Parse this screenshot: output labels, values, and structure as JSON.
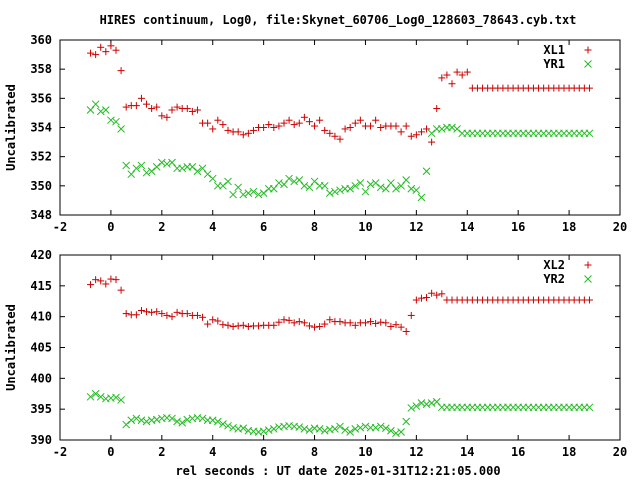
{
  "title": "HIRES continuum, Log0, file:Skynet_60706_Log0_128603_78643.cyb.txt",
  "xlabel": "rel seconds : UT date 2025-01-31T12:21:05.000",
  "colors": {
    "series_a": "#cc0000",
    "series_b": "#22bb22",
    "axes": "#000000"
  },
  "chart_data": [
    {
      "type": "scatter",
      "ylabel": "Uncalibrated",
      "xlim": [
        -2,
        20
      ],
      "ylim": [
        348,
        360
      ],
      "xticks": [
        -2,
        0,
        2,
        4,
        6,
        8,
        10,
        12,
        14,
        16,
        18,
        20
      ],
      "yticks": [
        348,
        350,
        352,
        354,
        356,
        358,
        360
      ],
      "legend": "top-right",
      "x": [
        -0.8,
        -0.6,
        -0.4,
        -0.2,
        0.0,
        0.2,
        0.4,
        0.6,
        0.8,
        1.0,
        1.2,
        1.4,
        1.6,
        1.8,
        2.0,
        2.2,
        2.4,
        2.6,
        2.8,
        3.0,
        3.2,
        3.4,
        3.6,
        3.8,
        4.0,
        4.2,
        4.4,
        4.6,
        4.8,
        5.0,
        5.2,
        5.4,
        5.6,
        5.8,
        6.0,
        6.2,
        6.4,
        6.6,
        6.8,
        7.0,
        7.2,
        7.4,
        7.6,
        7.8,
        8.0,
        8.2,
        8.4,
        8.6,
        8.8,
        9.0,
        9.2,
        9.4,
        9.6,
        9.8,
        10.0,
        10.2,
        10.4,
        10.6,
        10.8,
        11.0,
        11.2,
        11.4,
        11.6,
        11.8,
        12.0,
        12.2,
        12.4,
        12.6,
        12.8,
        13.0,
        13.2,
        13.4,
        13.6,
        13.8,
        14.0,
        14.2,
        14.4,
        14.6,
        14.8,
        15.0,
        15.2,
        15.4,
        15.6,
        15.8,
        16.0,
        16.2,
        16.4,
        16.6,
        16.8,
        17.0,
        17.2,
        17.4,
        17.6,
        17.8,
        18.0,
        18.2,
        18.4,
        18.6,
        18.8
      ],
      "series": [
        {
          "name": "XL1",
          "marker": "plus",
          "values": [
            359.1,
            359.0,
            359.5,
            359.2,
            359.6,
            359.3,
            357.9,
            355.4,
            355.5,
            355.5,
            356.0,
            355.6,
            355.3,
            355.4,
            354.8,
            354.7,
            355.2,
            355.4,
            355.3,
            355.3,
            355.1,
            355.2,
            354.3,
            354.3,
            353.9,
            354.5,
            354.2,
            353.8,
            353.7,
            353.7,
            353.5,
            353.6,
            353.8,
            354.0,
            354.0,
            354.2,
            354.0,
            354.1,
            354.3,
            354.5,
            354.2,
            354.3,
            354.7,
            354.4,
            354.1,
            354.5,
            353.8,
            353.6,
            353.4,
            353.2,
            353.9,
            354.0,
            354.3,
            354.5,
            354.1,
            354.1,
            354.5,
            354.0,
            354.1,
            354.1,
            354.1,
            353.7,
            354.1,
            353.4,
            353.5,
            353.7,
            353.9,
            353.0,
            355.3,
            357.4,
            357.6,
            357.0,
            357.8,
            357.6,
            357.8,
            356.7,
            356.7,
            356.7,
            356.7,
            356.7,
            356.7,
            356.7,
            356.7,
            356.7,
            356.7,
            356.7,
            356.7,
            356.7,
            356.7,
            356.7,
            356.7,
            356.7,
            356.7,
            356.7,
            356.7,
            356.7,
            356.7,
            356.7,
            356.7
          ]
        },
        {
          "name": "YR1",
          "marker": "cross",
          "values": [
            355.2,
            355.6,
            355.1,
            355.2,
            354.5,
            354.4,
            353.9,
            351.4,
            350.8,
            351.2,
            351.4,
            350.9,
            351.0,
            351.3,
            351.6,
            351.5,
            351.6,
            351.2,
            351.2,
            351.3,
            351.3,
            351.0,
            351.2,
            350.8,
            350.5,
            350.0,
            350.0,
            350.3,
            349.4,
            349.9,
            349.4,
            349.5,
            349.6,
            349.4,
            349.5,
            349.8,
            349.8,
            350.2,
            350.1,
            350.5,
            350.3,
            350.4,
            350.0,
            349.9,
            350.3,
            350.0,
            350.0,
            349.5,
            349.6,
            349.7,
            349.8,
            349.8,
            350.0,
            350.2,
            349.6,
            350.1,
            350.2,
            349.9,
            349.8,
            350.2,
            349.8,
            350.0,
            350.4,
            349.8,
            349.7,
            349.2,
            351.0,
            353.6,
            353.9,
            353.9,
            354.0,
            354.0,
            353.9,
            353.6,
            353.6,
            353.6,
            353.6,
            353.6,
            353.6,
            353.6,
            353.6,
            353.6,
            353.6,
            353.6,
            353.6,
            353.6,
            353.6,
            353.6,
            353.6,
            353.6,
            353.6,
            353.6,
            353.6,
            353.6,
            353.6,
            353.6,
            353.6,
            353.6,
            353.6
          ]
        }
      ]
    },
    {
      "type": "scatter",
      "ylabel": "Uncalibrated",
      "xlim": [
        -2,
        20
      ],
      "ylim": [
        390,
        420
      ],
      "xticks": [
        -2,
        0,
        2,
        4,
        6,
        8,
        10,
        12,
        14,
        16,
        18,
        20
      ],
      "yticks": [
        390,
        395,
        400,
        405,
        410,
        415,
        420
      ],
      "legend": "top-right",
      "x": [
        -0.8,
        -0.6,
        -0.4,
        -0.2,
        0.0,
        0.2,
        0.4,
        0.6,
        0.8,
        1.0,
        1.2,
        1.4,
        1.6,
        1.8,
        2.0,
        2.2,
        2.4,
        2.6,
        2.8,
        3.0,
        3.2,
        3.4,
        3.6,
        3.8,
        4.0,
        4.2,
        4.4,
        4.6,
        4.8,
        5.0,
        5.2,
        5.4,
        5.6,
        5.8,
        6.0,
        6.2,
        6.4,
        6.6,
        6.8,
        7.0,
        7.2,
        7.4,
        7.6,
        7.8,
        8.0,
        8.2,
        8.4,
        8.6,
        8.8,
        9.0,
        9.2,
        9.4,
        9.6,
        9.8,
        10.0,
        10.2,
        10.4,
        10.6,
        10.8,
        11.0,
        11.2,
        11.4,
        11.6,
        11.8,
        12.0,
        12.2,
        12.4,
        12.6,
        12.8,
        13.0,
        13.2,
        13.4,
        13.6,
        13.8,
        14.0,
        14.2,
        14.4,
        14.6,
        14.8,
        15.0,
        15.2,
        15.4,
        15.6,
        15.8,
        16.0,
        16.2,
        16.4,
        16.6,
        16.8,
        17.0,
        17.2,
        17.4,
        17.6,
        17.8,
        18.0,
        18.2,
        18.4,
        18.6,
        18.8
      ],
      "series": [
        {
          "name": "XL2",
          "marker": "plus",
          "values": [
            415.2,
            416.0,
            415.8,
            415.3,
            416.1,
            416.0,
            414.3,
            410.5,
            410.3,
            410.3,
            411.0,
            410.8,
            410.7,
            410.8,
            410.5,
            410.2,
            410.0,
            410.7,
            410.5,
            410.5,
            410.2,
            410.2,
            409.9,
            408.8,
            409.5,
            409.3,
            408.7,
            408.6,
            408.4,
            408.5,
            408.6,
            408.4,
            408.5,
            408.5,
            408.6,
            408.6,
            408.6,
            409.1,
            409.5,
            409.4,
            409.0,
            409.2,
            409.0,
            408.5,
            408.3,
            408.4,
            408.8,
            409.5,
            409.2,
            409.2,
            409.0,
            409.0,
            408.6,
            409.0,
            409.0,
            409.2,
            408.9,
            409.1,
            409.0,
            408.4,
            408.7,
            408.3,
            407.6,
            410.2,
            412.7,
            413.0,
            413.1,
            413.8,
            413.5,
            413.7,
            412.7,
            412.7,
            412.7,
            412.7,
            412.7,
            412.7,
            412.7,
            412.7,
            412.7,
            412.7,
            412.7,
            412.7,
            412.7,
            412.7,
            412.7,
            412.7,
            412.7,
            412.7,
            412.7,
            412.7,
            412.7,
            412.7,
            412.7,
            412.7,
            412.7,
            412.7,
            412.7,
            412.7,
            412.7
          ]
        },
        {
          "name": "YR2",
          "marker": "cross",
          "values": [
            397.0,
            397.5,
            397.0,
            396.7,
            396.8,
            396.9,
            396.5,
            392.5,
            393.2,
            393.5,
            393.2,
            393.0,
            393.2,
            393.3,
            393.5,
            393.6,
            393.5,
            393.0,
            392.8,
            393.3,
            393.5,
            393.6,
            393.5,
            393.2,
            393.2,
            393.0,
            392.6,
            392.3,
            392.0,
            391.8,
            391.9,
            391.5,
            391.4,
            391.3,
            391.4,
            391.6,
            391.8,
            392.1,
            392.2,
            392.3,
            392.2,
            392.1,
            391.8,
            391.6,
            391.9,
            391.8,
            391.5,
            391.7,
            391.8,
            392.2,
            391.6,
            391.3,
            391.8,
            392.0,
            392.2,
            392.0,
            392.0,
            392.2,
            391.9,
            391.5,
            391.1,
            391.3,
            393.0,
            395.2,
            395.5,
            396.0,
            395.8,
            396.0,
            396.2,
            395.3,
            395.3,
            395.3,
            395.3,
            395.3,
            395.3,
            395.3,
            395.3,
            395.3,
            395.3,
            395.3,
            395.3,
            395.3,
            395.3,
            395.3,
            395.3,
            395.3,
            395.3,
            395.3,
            395.3,
            395.3,
            395.3,
            395.3,
            395.3,
            395.3,
            395.3,
            395.3,
            395.3,
            395.3,
            395.3
          ]
        }
      ]
    }
  ]
}
